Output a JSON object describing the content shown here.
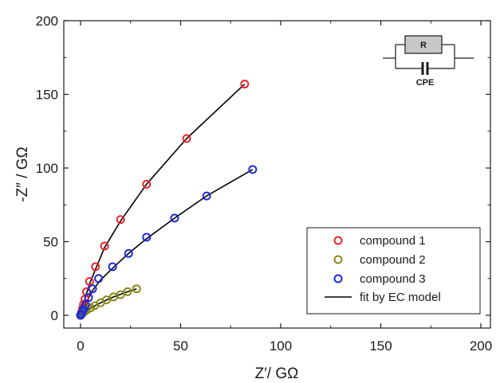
{
  "chart_data": {
    "type": "scatter",
    "xlabel": "Z′/ GΩ",
    "ylabel": "-Z″ / GΩ",
    "xlim": [
      0,
      200
    ],
    "ylim": [
      0,
      200
    ],
    "x_ticks": [
      0,
      50,
      100,
      150,
      200
    ],
    "y_ticks": [
      0,
      50,
      100,
      150,
      200
    ],
    "x_tick_labels": [
      "0",
      "50",
      "100",
      "150",
      "200"
    ],
    "y_tick_labels": [
      "0",
      "50",
      "100",
      "150",
      "200"
    ],
    "legend_position": "bottom-right",
    "series": [
      {
        "name": "compound 1",
        "color": "#e8262a",
        "marker": "open-circle",
        "points": [
          [
            0,
            0
          ],
          [
            0.5,
            2
          ],
          [
            1,
            4.5
          ],
          [
            1.5,
            7.5
          ],
          [
            2.2,
            11
          ],
          [
            3,
            16
          ],
          [
            4.5,
            23
          ],
          [
            7.5,
            33
          ],
          [
            12,
            47
          ],
          [
            20,
            65
          ],
          [
            33,
            89
          ],
          [
            53,
            120
          ],
          [
            82,
            157
          ]
        ]
      },
      {
        "name": "compound 2",
        "color": "#8a8a1a",
        "marker": "open-circle",
        "points": [
          [
            0,
            0
          ],
          [
            0.5,
            0.5
          ],
          [
            1,
            1.5
          ],
          [
            2,
            2.5
          ],
          [
            3,
            3.5
          ],
          [
            5,
            5
          ],
          [
            7,
            6.5
          ],
          [
            10,
            8.5
          ],
          [
            13,
            10.5
          ],
          [
            16.5,
            12.5
          ],
          [
            20,
            14
          ],
          [
            23.5,
            16
          ],
          [
            28,
            18
          ]
        ]
      },
      {
        "name": "compound 3",
        "color": "#1f2bd6",
        "marker": "open-circle",
        "points": [
          [
            0,
            0
          ],
          [
            0.5,
            1
          ],
          [
            1,
            2.5
          ],
          [
            1.5,
            4
          ],
          [
            2.5,
            7
          ],
          [
            4,
            12
          ],
          [
            6,
            18
          ],
          [
            9,
            25
          ],
          [
            16,
            33
          ],
          [
            24,
            42
          ],
          [
            33,
            53
          ],
          [
            47,
            66
          ],
          [
            63,
            81
          ],
          [
            86,
            99
          ]
        ]
      },
      {
        "name": "fit by EC model",
        "color": "#000000",
        "marker": "line",
        "lines": [
          [
            [
              0,
              0
            ],
            [
              0.5,
              2
            ],
            [
              1.5,
              7.5
            ],
            [
              3,
              15
            ],
            [
              5,
              23
            ],
            [
              8,
              33
            ],
            [
              12,
              46
            ],
            [
              20,
              64
            ],
            [
              33,
              89
            ],
            [
              53,
              120
            ],
            [
              82,
              157
            ]
          ],
          [
            [
              0,
              0
            ],
            [
              2,
              2.5
            ],
            [
              5,
              5
            ],
            [
              10,
              8.5
            ],
            [
              16.5,
              12.5
            ],
            [
              23.5,
              16
            ],
            [
              28,
              18
            ]
          ],
          [
            [
              0,
              0
            ],
            [
              1,
              2.5
            ],
            [
              3,
              9
            ],
            [
              6,
              17
            ],
            [
              10,
              24
            ],
            [
              16,
              32
            ],
            [
              24,
              42
            ],
            [
              33,
              52
            ],
            [
              47,
              66
            ],
            [
              63,
              81
            ],
            [
              86,
              99
            ]
          ]
        ]
      }
    ],
    "inset_circuit": {
      "resistor_label": "R",
      "cpe_label": "CPE"
    }
  }
}
